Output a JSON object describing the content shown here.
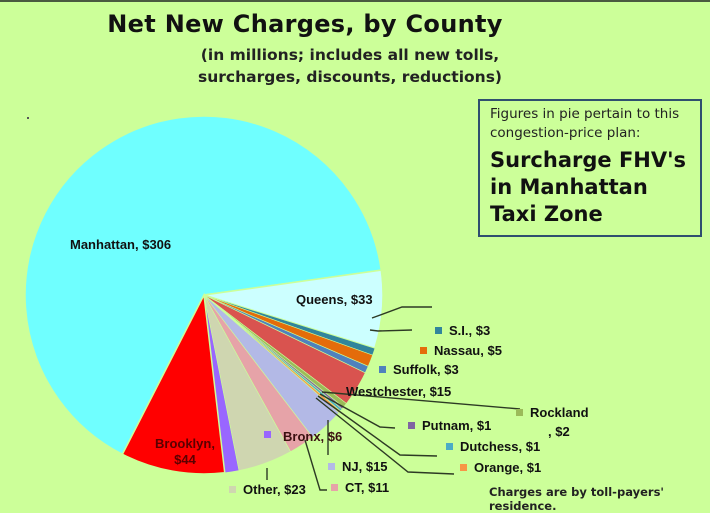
{
  "title": "Net New Charges, by County",
  "subtitle_line1": "(in millions; includes all new tolls,",
  "subtitle_line2": "surcharges, discounts, reductions)",
  "infobox": {
    "small_line1": "Figures in pie pertain to this",
    "small_line2": "congestion-price plan:",
    "big_line1": "Surcharge FHV's",
    "big_line2": "in Manhattan",
    "big_line3": "Taxi Zone"
  },
  "note": "Charges are by toll-payers' residence.",
  "labels": {
    "manhattan": "Manhattan, $306",
    "queens": "Queens, $33",
    "si": "S.I., $3",
    "nassau": "Nassau, $5",
    "suffolk": "Suffolk, $3",
    "westchester": "Westchester, $15",
    "rockland1": "Rockland",
    "rockland2": ", $2",
    "putnam": "Putnam, $1",
    "dutchess": "Dutchess, $1",
    "orange": "Orange, $1",
    "nj": "NJ, $15",
    "ct": "CT, $11",
    "other": "Other, $23",
    "bronx": "Bronx, $6",
    "brooklyn1": "Brooklyn,",
    "brooklyn2": "$44"
  },
  "chart_data": {
    "type": "pie",
    "title": "Net New Charges, by County",
    "subtitle": "(in millions; includes all new tolls, surcharges, discounts, reductions)",
    "unit": "$ millions",
    "categories": [
      "Manhattan",
      "Queens",
      "S.I.",
      "Nassau",
      "Suffolk",
      "Westchester",
      "Rockland",
      "Putnam",
      "Dutchess",
      "Orange",
      "NJ",
      "CT",
      "Other",
      "Bronx",
      "Brooklyn"
    ],
    "values": [
      306,
      33,
      3,
      5,
      3,
      15,
      2,
      1,
      1,
      1,
      15,
      11,
      23,
      6,
      44
    ],
    "colors": [
      "#6fffff",
      "#ccffff",
      "#31859c",
      "#e46c0a",
      "#4f81bd",
      "#d9534f",
      "#9bbb59",
      "#8064a2",
      "#4bacc6",
      "#f79646",
      "#b3b9e6",
      "#e6a3a8",
      "#cfd6b0",
      "#9966ff",
      "#ff0000"
    ],
    "annotation": "Charges are by toll-payers' residence."
  }
}
